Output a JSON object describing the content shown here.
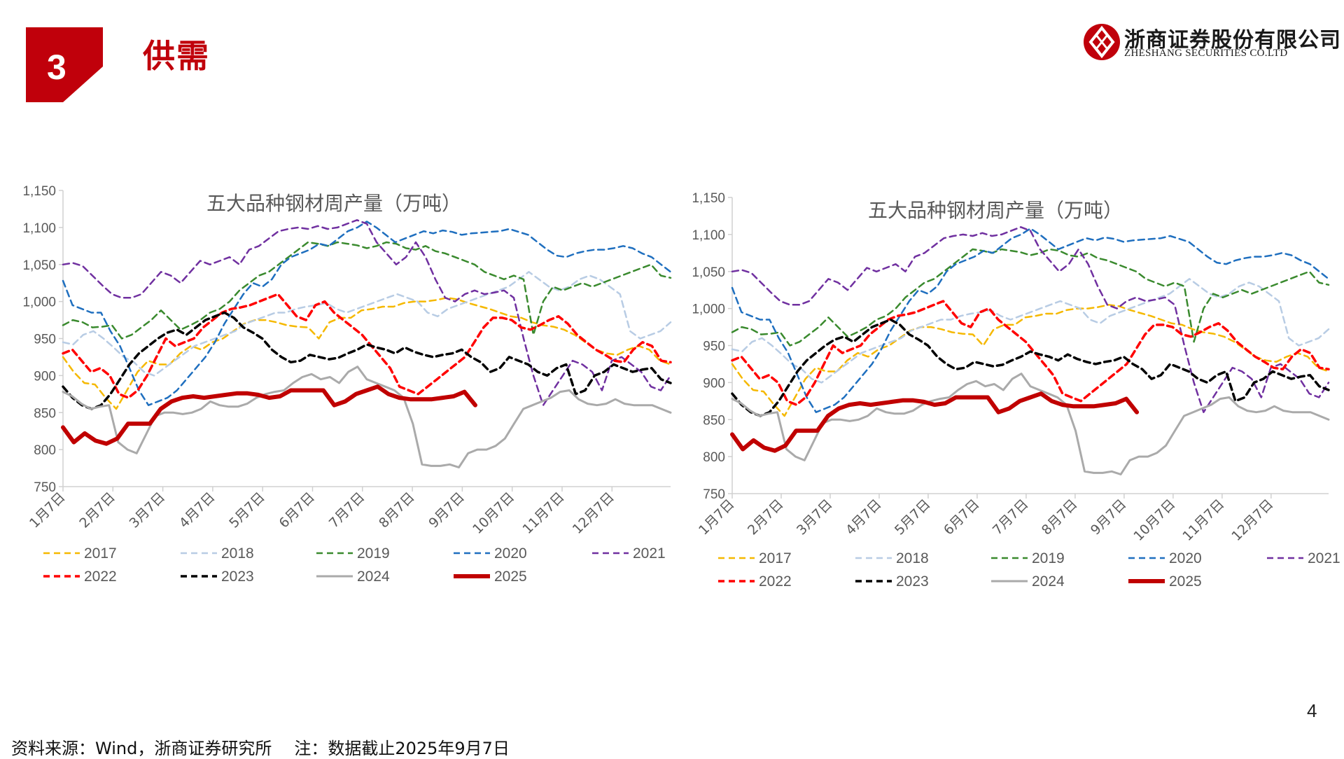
{
  "header": {
    "section_number": "3",
    "section_title": "供需",
    "brand_color": "#c0000b"
  },
  "logo": {
    "name_cn": "浙商证券股份有限公司",
    "name_en": "ZHESHANG SECURITIES CO.LTD"
  },
  "footer": {
    "source": "资料来源：Wind，浙商证券研究所",
    "note": "注：数据截止2025年9月7日",
    "page_number": "4"
  },
  "chart_data": [
    {
      "type": "line",
      "title": "五大品种钢材周产量（万吨）",
      "ylim": [
        750,
        1150
      ],
      "yticks": [
        750,
        800,
        850,
        900,
        950,
        1000,
        1050,
        1100,
        1150
      ],
      "ytick_labels": [
        "750",
        "800",
        "850",
        "900",
        "950",
        "1,000",
        "1,050",
        "1,100",
        "1,150"
      ],
      "categories": [
        "1月7日",
        "2月7日",
        "3月7日",
        "4月7日",
        "5月7日",
        "6月7日",
        "7月7日",
        "8月7日",
        "9月7日",
        "10月7日",
        "11月7日",
        "12月7日"
      ],
      "series_ref": "shared_series"
    },
    {
      "type": "line",
      "title": "五大品种钢材周产量（万吨）",
      "ylim": [
        750,
        1150
      ],
      "yticks": [
        750,
        800,
        850,
        900,
        950,
        1000,
        1050,
        1100,
        1150
      ],
      "ytick_labels": [
        "750",
        "800",
        "850",
        "900",
        "950",
        "1,000",
        "1,050",
        "1,100",
        "1,150"
      ],
      "categories": [
        "1月7日",
        "2月7日",
        "3月7日",
        "4月7日",
        "5月7日",
        "6月7日",
        "7月7日",
        "8月7日",
        "9月7日",
        "10月7日",
        "11月7日",
        "12月7日"
      ],
      "series_ref": "shared_series"
    }
  ],
  "shared_series": [
    {
      "name": "2017",
      "color": "#f5b800",
      "dash": "dash",
      "width": 2.5,
      "values": [
        925,
        905,
        890,
        888,
        870,
        855,
        880,
        905,
        920,
        915,
        915,
        930,
        940,
        935,
        945,
        950,
        960,
        970,
        975,
        975,
        972,
        968,
        966,
        965,
        950,
        972,
        978,
        978,
        988,
        990,
        993,
        993,
        998,
        1000,
        1000,
        1002,
        1005,
        1003,
        998,
        994,
        990,
        985,
        980,
        978,
        972,
        968,
        966,
        962,
        955,
        945,
        935,
        930,
        928,
        935,
        940,
        935,
        920,
        915
      ]
    },
    {
      "name": "2018",
      "color": "#b8cce4",
      "dash": "dash",
      "width": 2.5,
      "values": [
        945,
        942,
        955,
        960,
        950,
        938,
        925,
        918,
        905,
        900,
        910,
        920,
        930,
        940,
        945,
        950,
        955,
        960,
        970,
        975,
        980,
        985,
        985,
        990,
        993,
        995,
        998,
        990,
        985,
        990,
        995,
        1000,
        1005,
        1010,
        1005,
        1000,
        985,
        980,
        990,
        995,
        1000,
        1005,
        1010,
        1015,
        1020,
        1030,
        1040,
        1030,
        1020,
        1015,
        1020,
        1030,
        1035,
        1030,
        1020,
        1010,
        960,
        950,
        955,
        960,
        972
      ]
    },
    {
      "name": "2019",
      "color": "#3a8a2e",
      "dash": "dash",
      "width": 2.5,
      "values": [
        968,
        975,
        972,
        965,
        966,
        968,
        950,
        955,
        965,
        975,
        988,
        975,
        962,
        968,
        975,
        985,
        990,
        1000,
        1015,
        1025,
        1035,
        1040,
        1050,
        1060,
        1070,
        1080,
        1078,
        1075,
        1080,
        1078,
        1076,
        1072,
        1075,
        1080,
        1078,
        1072,
        1070,
        1075,
        1068,
        1065,
        1060,
        1055,
        1050,
        1040,
        1035,
        1030,
        1035,
        1030,
        955,
        1000,
        1020,
        1015,
        1020,
        1025,
        1020,
        1025,
        1030,
        1035,
        1040,
        1045,
        1050,
        1035,
        1032
      ]
    },
    {
      "name": "2020",
      "color": "#1f6fbf",
      "dash": "dash",
      "width": 2.5,
      "values": [
        1028,
        995,
        990,
        985,
        985,
        960,
        940,
        910,
        880,
        860,
        865,
        870,
        880,
        895,
        910,
        925,
        945,
        970,
        990,
        1010,
        1025,
        1020,
        1030,
        1050,
        1060,
        1065,
        1070,
        1078,
        1075,
        1085,
        1095,
        1100,
        1108,
        1100,
        1090,
        1080,
        1085,
        1090,
        1095,
        1092,
        1096,
        1094,
        1090,
        1092,
        1093,
        1094,
        1095,
        1098,
        1094,
        1090,
        1080,
        1070,
        1062,
        1060,
        1065,
        1068,
        1070,
        1070,
        1072,
        1075,
        1072,
        1065,
        1060,
        1050,
        1040
      ]
    },
    {
      "name": "2021",
      "color": "#7030a0",
      "dash": "dash",
      "width": 2.5,
      "values": [
        1050,
        1052,
        1048,
        1035,
        1022,
        1010,
        1005,
        1005,
        1010,
        1025,
        1040,
        1035,
        1025,
        1040,
        1055,
        1050,
        1055,
        1060,
        1050,
        1070,
        1075,
        1085,
        1095,
        1098,
        1100,
        1098,
        1102,
        1098,
        1100,
        1105,
        1110,
        1105,
        1080,
        1065,
        1050,
        1060,
        1080,
        1060,
        1030,
        1005,
        1000,
        1010,
        1015,
        1010,
        1012,
        1015,
        1005,
        950,
        900,
        860,
        880,
        900,
        920,
        915,
        905,
        880,
        920,
        925,
        915,
        905,
        885,
        880,
        900
      ]
    },
    {
      "name": "2022",
      "color": "#ff0000",
      "dash": "dash",
      "width": 3.5,
      "values": [
        930,
        935,
        920,
        905,
        910,
        900,
        875,
        870,
        880,
        900,
        925,
        950,
        940,
        945,
        950,
        965,
        975,
        985,
        990,
        992,
        995,
        1000,
        1005,
        1010,
        995,
        980,
        975,
        995,
        1000,
        985,
        975,
        965,
        955,
        940,
        925,
        910,
        885,
        880,
        875,
        885,
        895,
        905,
        915,
        925,
        945,
        965,
        978,
        978,
        975,
        965,
        962,
        968,
        975,
        980,
        970,
        955,
        945,
        935,
        928,
        920,
        918,
        935,
        945,
        940,
        920,
        918
      ]
    },
    {
      "name": "2023",
      "color": "#000000",
      "dash": "dash",
      "width": 3.5,
      "values": [
        885,
        870,
        860,
        855,
        860,
        875,
        895,
        915,
        930,
        940,
        950,
        958,
        962,
        955,
        965,
        975,
        980,
        985,
        978,
        965,
        958,
        950,
        935,
        925,
        918,
        920,
        928,
        925,
        922,
        924,
        930,
        935,
        942,
        938,
        935,
        930,
        938,
        932,
        928,
        925,
        928,
        930,
        935,
        925,
        918,
        905,
        910,
        925,
        920,
        915,
        905,
        900,
        910,
        915,
        875,
        880,
        900,
        905,
        915,
        910,
        905,
        908,
        910,
        895,
        890
      ]
    },
    {
      "name": "2024",
      "color": "#aaaaaa",
      "dash": "solid",
      "width": 3,
      "values": [
        878,
        872,
        862,
        855,
        858,
        860,
        810,
        800,
        795,
        820,
        845,
        850,
        850,
        848,
        850,
        855,
        865,
        860,
        858,
        858,
        862,
        870,
        875,
        878,
        880,
        890,
        898,
        902,
        895,
        898,
        890,
        905,
        912,
        895,
        890,
        885,
        880,
        870,
        835,
        780,
        778,
        778,
        780,
        776,
        795,
        800,
        800,
        805,
        815,
        835,
        855,
        860,
        865,
        870,
        878,
        880,
        868,
        862,
        860,
        862,
        868,
        862,
        860,
        860,
        860,
        855,
        850
      ]
    },
    {
      "name": "2025",
      "color": "#c00000",
      "dash": "solid",
      "width": 6,
      "values": [
        830,
        810,
        822,
        812,
        808,
        815,
        835,
        835,
        835,
        855,
        865,
        870,
        872,
        870,
        872,
        874,
        876,
        876,
        874,
        870,
        872,
        880,
        880,
        880,
        880,
        860,
        865,
        875,
        880,
        885,
        875,
        870,
        868,
        868,
        868,
        870,
        872,
        878,
        860
      ]
    }
  ]
}
